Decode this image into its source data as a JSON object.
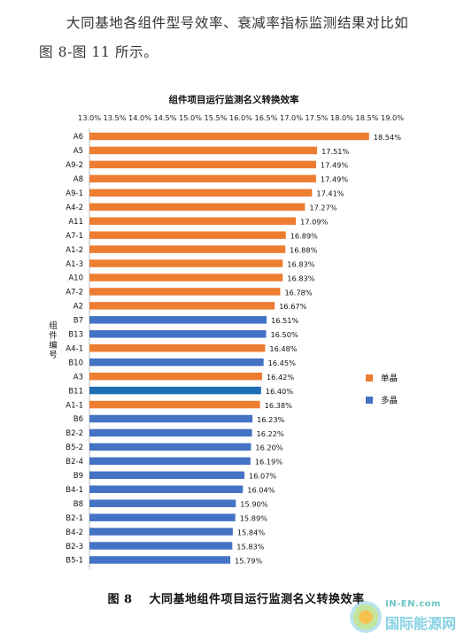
{
  "intro": {
    "line1": "大同基地各组件型号效率、衰减率指标监测结果对比如",
    "line2": "图 8-图 11 所示。"
  },
  "caption": {
    "number": "图 8",
    "text": "大同基地组件项目运行监测名义转换效率"
  },
  "watermark": {
    "en": "IN-EN.com",
    "cn": "国际能源网"
  },
  "colors": {
    "mono": "#ED7D31",
    "multi": "#4472C4",
    "highlight": "#1F6FB5"
  },
  "chart_data": {
    "type": "bar",
    "orientation": "horizontal",
    "title": "组件项目运行监测名义转换效率",
    "ylabel": "组件编号",
    "xlabel": "",
    "xlim": [
      13.0,
      19.0
    ],
    "x_axis_position": "top",
    "xticks": [
      "13.0%",
      "13.5%",
      "14.0%",
      "14.5%",
      "15.0%",
      "15.5%",
      "16.0%",
      "16.5%",
      "17.0%",
      "17.5%",
      "18.0%",
      "18.5%",
      "19.0%"
    ],
    "legend": {
      "placement": "right",
      "entries": [
        {
          "name": "单晶",
          "color": "#ED7D31"
        },
        {
          "name": "多晶",
          "color": "#4472C4"
        }
      ]
    },
    "grid": false,
    "categories": [
      "A6",
      "A5",
      "A9-2",
      "A8",
      "A9-1",
      "A4-2",
      "A11",
      "A7-1",
      "A1-2",
      "A1-3",
      "A10",
      "A7-2",
      "A2",
      "B7",
      "B13",
      "A4-1",
      "B10",
      "A3",
      "B11",
      "A1-1",
      "B6",
      "B2-2",
      "B5-2",
      "B2-4",
      "B9",
      "B4-1",
      "B8",
      "B2-1",
      "B4-2",
      "B2-3",
      "B5-1"
    ],
    "values": [
      18.54,
      17.51,
      17.49,
      17.49,
      17.41,
      17.27,
      17.09,
      16.89,
      16.88,
      16.83,
      16.83,
      16.78,
      16.67,
      16.51,
      16.5,
      16.48,
      16.45,
      16.42,
      16.4,
      16.38,
      16.23,
      16.22,
      16.2,
      16.19,
      16.07,
      16.04,
      15.9,
      15.89,
      15.84,
      15.83,
      15.79
    ],
    "value_labels": [
      "18.54%",
      "17.51%",
      "17.49%",
      "17.49%",
      "17.41%",
      "17.27%",
      "17.09%",
      "16.89%",
      "16.88%",
      "16.83%",
      "16.83%",
      "16.78%",
      "16.67%",
      "16.51%",
      "16.50%",
      "16.48%",
      "16.45%",
      "16.42%",
      "16.40%",
      "16.38%",
      "16.23%",
      "16.22%",
      "16.20%",
      "16.19%",
      "16.07%",
      "16.04%",
      "15.90%",
      "15.89%",
      "15.84%",
      "15.83%",
      "15.79%"
    ],
    "series_type": [
      "单晶",
      "单晶",
      "单晶",
      "单晶",
      "单晶",
      "单晶",
      "单晶",
      "单晶",
      "单晶",
      "单晶",
      "单晶",
      "单晶",
      "单晶",
      "多晶",
      "多晶",
      "单晶",
      "多晶",
      "单晶",
      "多晶",
      "单晶",
      "多晶",
      "多晶",
      "多晶",
      "多晶",
      "多晶",
      "多晶",
      "多晶",
      "多晶",
      "多晶",
      "多晶",
      "多晶"
    ],
    "highlighted": "B11"
  }
}
